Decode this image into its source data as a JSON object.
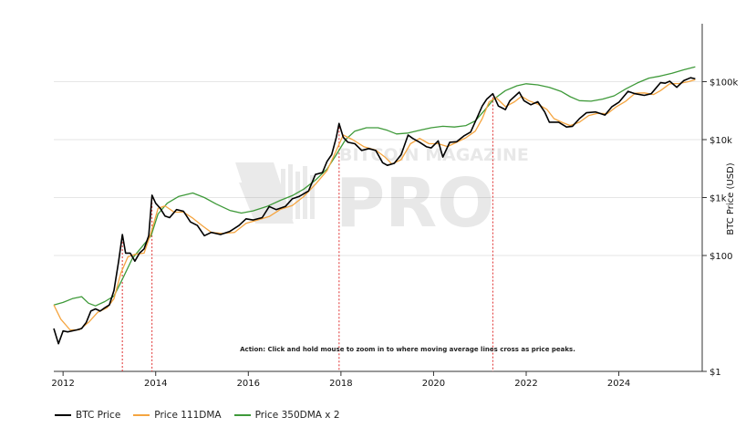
{
  "chart_data": {
    "type": "line",
    "title": "",
    "ylabel": "BTC Price (USD)",
    "xlabel": "",
    "yscale": "log",
    "ylim": [
      1,
      1000000
    ],
    "xlim": [
      2011.8,
      2025.8
    ],
    "x_ticks": [
      "2012",
      "2014",
      "2016",
      "2018",
      "2020",
      "2022",
      "2024"
    ],
    "y_ticks": [
      {
        "value": 1,
        "label": "$1"
      },
      {
        "value": 100,
        "label": "$100"
      },
      {
        "value": 1000,
        "label": "$1k"
      },
      {
        "value": 10000,
        "label": "$10k"
      },
      {
        "value": 100000,
        "label": "$100k"
      }
    ],
    "grid": "horizontal",
    "legend_position": "bottom-left",
    "annotation": "Action: Click and hold mouse to zoom in to where moving average lines cross as price peaks.",
    "watermark": "BITCOIN MAGAZINE PRO",
    "cross_dates": [
      2013.28,
      2013.92,
      2017.96,
      2021.28
    ],
    "series": [
      {
        "name": "BTC Price",
        "color": "#000000",
        "points": [
          [
            2011.8,
            5.5
          ],
          [
            2011.9,
            3.0
          ],
          [
            2012.0,
            5.0
          ],
          [
            2012.1,
            4.8
          ],
          [
            2012.2,
            5.0
          ],
          [
            2012.3,
            5.2
          ],
          [
            2012.4,
            5.5
          ],
          [
            2012.5,
            7.0
          ],
          [
            2012.6,
            11.0
          ],
          [
            2012.7,
            12.0
          ],
          [
            2012.8,
            11.0
          ],
          [
            2012.9,
            12.5
          ],
          [
            2013.0,
            14.0
          ],
          [
            2013.1,
            25.0
          ],
          [
            2013.2,
            80.0
          ],
          [
            2013.28,
            230.0
          ],
          [
            2013.35,
            110.0
          ],
          [
            2013.45,
            110.0
          ],
          [
            2013.55,
            80.0
          ],
          [
            2013.65,
            110.0
          ],
          [
            2013.75,
            130.0
          ],
          [
            2013.85,
            220.0
          ],
          [
            2013.92,
            1100.0
          ],
          [
            2014.0,
            800.0
          ],
          [
            2014.1,
            650.0
          ],
          [
            2014.2,
            480.0
          ],
          [
            2014.3,
            450.0
          ],
          [
            2014.45,
            620.0
          ],
          [
            2014.6,
            580.0
          ],
          [
            2014.75,
            380.0
          ],
          [
            2014.9,
            330.0
          ],
          [
            2015.05,
            220.0
          ],
          [
            2015.2,
            250.0
          ],
          [
            2015.4,
            230.0
          ],
          [
            2015.6,
            260.0
          ],
          [
            2015.8,
            330.0
          ],
          [
            2015.95,
            430.0
          ],
          [
            2016.1,
            410.0
          ],
          [
            2016.3,
            450.0
          ],
          [
            2016.45,
            700.0
          ],
          [
            2016.6,
            620.0
          ],
          [
            2016.8,
            700.0
          ],
          [
            2016.95,
            950.0
          ],
          [
            2017.1,
            1050.0
          ],
          [
            2017.3,
            1300.0
          ],
          [
            2017.45,
            2500.0
          ],
          [
            2017.6,
            2700.0
          ],
          [
            2017.7,
            4200.0
          ],
          [
            2017.8,
            5500.0
          ],
          [
            2017.9,
            11000.0
          ],
          [
            2017.96,
            19000.0
          ],
          [
            2018.05,
            11000.0
          ],
          [
            2018.15,
            9000.0
          ],
          [
            2018.3,
            8500.0
          ],
          [
            2018.45,
            6500.0
          ],
          [
            2018.6,
            7000.0
          ],
          [
            2018.75,
            6500.0
          ],
          [
            2018.9,
            4000.0
          ],
          [
            2019.0,
            3600.0
          ],
          [
            2019.15,
            3900.0
          ],
          [
            2019.3,
            5500.0
          ],
          [
            2019.45,
            12000.0
          ],
          [
            2019.55,
            10500.0
          ],
          [
            2019.7,
            9000.0
          ],
          [
            2019.85,
            7500.0
          ],
          [
            2019.95,
            7200.0
          ],
          [
            2020.1,
            9500.0
          ],
          [
            2020.2,
            5000.0
          ],
          [
            2020.35,
            9000.0
          ],
          [
            2020.5,
            9200.0
          ],
          [
            2020.65,
            11500.0
          ],
          [
            2020.8,
            13500.0
          ],
          [
            2020.95,
            25000.0
          ],
          [
            2021.05,
            38000.0
          ],
          [
            2021.15,
            50000.0
          ],
          [
            2021.28,
            62000.0
          ],
          [
            2021.4,
            38000.0
          ],
          [
            2021.55,
            33000.0
          ],
          [
            2021.65,
            47000.0
          ],
          [
            2021.85,
            66000.0
          ],
          [
            2021.95,
            47000.0
          ],
          [
            2022.1,
            40000.0
          ],
          [
            2022.25,
            45000.0
          ],
          [
            2022.4,
            30000.0
          ],
          [
            2022.5,
            20000.0
          ],
          [
            2022.7,
            20000.0
          ],
          [
            2022.87,
            16500.0
          ],
          [
            2023.0,
            17000.0
          ],
          [
            2023.15,
            23000.0
          ],
          [
            2023.3,
            29000.0
          ],
          [
            2023.5,
            30000.0
          ],
          [
            2023.7,
            26500.0
          ],
          [
            2023.85,
            37000.0
          ],
          [
            2024.0,
            44000.0
          ],
          [
            2024.2,
            68000.0
          ],
          [
            2024.35,
            62000.0
          ],
          [
            2024.55,
            58000.0
          ],
          [
            2024.7,
            62000.0
          ],
          [
            2024.9,
            96000.0
          ],
          [
            2025.0,
            94000.0
          ],
          [
            2025.1,
            102000.0
          ],
          [
            2025.25,
            80000.0
          ],
          [
            2025.4,
            104000.0
          ],
          [
            2025.55,
            117000.0
          ],
          [
            2025.65,
            112000.0
          ]
        ]
      },
      {
        "name": "Price 111DMA",
        "color": "#f5a540",
        "points": [
          [
            2011.8,
            14.0
          ],
          [
            2011.95,
            8.0
          ],
          [
            2012.15,
            5.2
          ],
          [
            2012.35,
            5.2
          ],
          [
            2012.55,
            7.0
          ],
          [
            2012.75,
            10.5
          ],
          [
            2012.95,
            12.5
          ],
          [
            2013.1,
            18.0
          ],
          [
            2013.25,
            50.0
          ],
          [
            2013.4,
            95.0
          ],
          [
            2013.55,
            105.0
          ],
          [
            2013.75,
            110.0
          ],
          [
            2013.9,
            250.0
          ],
          [
            2014.05,
            650.0
          ],
          [
            2014.2,
            720.0
          ],
          [
            2014.4,
            560.0
          ],
          [
            2014.6,
            560.0
          ],
          [
            2014.8,
            440.0
          ],
          [
            2015.0,
            330.0
          ],
          [
            2015.2,
            250.0
          ],
          [
            2015.45,
            240.0
          ],
          [
            2015.7,
            250.0
          ],
          [
            2015.95,
            360.0
          ],
          [
            2016.2,
            410.0
          ],
          [
            2016.45,
            470.0
          ],
          [
            2016.7,
            630.0
          ],
          [
            2016.95,
            730.0
          ],
          [
            2017.2,
            1050.0
          ],
          [
            2017.45,
            1700.0
          ],
          [
            2017.7,
            2900.0
          ],
          [
            2017.9,
            6500.0
          ],
          [
            2018.05,
            12000.0
          ],
          [
            2018.25,
            10000.0
          ],
          [
            2018.5,
            7500.0
          ],
          [
            2018.75,
            6600.0
          ],
          [
            2018.95,
            5000.0
          ],
          [
            2019.1,
            3800.0
          ],
          [
            2019.3,
            4500.0
          ],
          [
            2019.5,
            8500.0
          ],
          [
            2019.7,
            10500.0
          ],
          [
            2019.9,
            8500.0
          ],
          [
            2020.1,
            8500.0
          ],
          [
            2020.3,
            7600.0
          ],
          [
            2020.5,
            9000.0
          ],
          [
            2020.7,
            10800.0
          ],
          [
            2020.9,
            14000.0
          ],
          [
            2021.05,
            23000.0
          ],
          [
            2021.2,
            45000.0
          ],
          [
            2021.35,
            53000.0
          ],
          [
            2021.55,
            37000.0
          ],
          [
            2021.75,
            45000.0
          ],
          [
            2021.9,
            56000.0
          ],
          [
            2022.05,
            47000.0
          ],
          [
            2022.25,
            41000.0
          ],
          [
            2022.45,
            33000.0
          ],
          [
            2022.6,
            23000.0
          ],
          [
            2022.8,
            19500.0
          ],
          [
            2022.95,
            17500.0
          ],
          [
            2023.15,
            20000.0
          ],
          [
            2023.35,
            26000.0
          ],
          [
            2023.55,
            28500.0
          ],
          [
            2023.75,
            28000.0
          ],
          [
            2023.95,
            37000.0
          ],
          [
            2024.15,
            46000.0
          ],
          [
            2024.35,
            63000.0
          ],
          [
            2024.55,
            64000.0
          ],
          [
            2024.75,
            60000.0
          ],
          [
            2024.9,
            70000.0
          ],
          [
            2025.1,
            92000.0
          ],
          [
            2025.3,
            93000.0
          ],
          [
            2025.5,
            100000.0
          ],
          [
            2025.65,
            108000.0
          ]
        ]
      },
      {
        "name": "Price 350DMA x 2",
        "color": "#3f9a3a",
        "points": [
          [
            2011.8,
            14.0
          ],
          [
            2012.0,
            15.5
          ],
          [
            2012.2,
            18.0
          ],
          [
            2012.4,
            19.5
          ],
          [
            2012.55,
            15.0
          ],
          [
            2012.7,
            13.5
          ],
          [
            2012.9,
            16.0
          ],
          [
            2013.1,
            20.0
          ],
          [
            2013.3,
            42.0
          ],
          [
            2013.5,
            90.0
          ],
          [
            2013.7,
            140.0
          ],
          [
            2013.9,
            220.0
          ],
          [
            2014.05,
            520.0
          ],
          [
            2014.25,
            800.0
          ],
          [
            2014.5,
            1050.0
          ],
          [
            2014.8,
            1200.0
          ],
          [
            2015.05,
            1000.0
          ],
          [
            2015.3,
            780.0
          ],
          [
            2015.6,
            600.0
          ],
          [
            2015.85,
            540.0
          ],
          [
            2016.1,
            590.0
          ],
          [
            2016.4,
            700.0
          ],
          [
            2016.7,
            900.0
          ],
          [
            2016.95,
            1080.0
          ],
          [
            2017.2,
            1400.0
          ],
          [
            2017.45,
            2000.0
          ],
          [
            2017.7,
            3100.0
          ],
          [
            2017.9,
            5500.0
          ],
          [
            2018.1,
            10000.0
          ],
          [
            2018.3,
            14000.0
          ],
          [
            2018.55,
            16000.0
          ],
          [
            2018.8,
            16000.0
          ],
          [
            2019.0,
            14500.0
          ],
          [
            2019.2,
            12500.0
          ],
          [
            2019.45,
            13000.0
          ],
          [
            2019.7,
            14500.0
          ],
          [
            2019.95,
            16000.0
          ],
          [
            2020.2,
            17000.0
          ],
          [
            2020.45,
            16500.0
          ],
          [
            2020.7,
            17500.0
          ],
          [
            2020.9,
            21000.0
          ],
          [
            2021.1,
            32000.0
          ],
          [
            2021.3,
            50000.0
          ],
          [
            2021.55,
            70000.0
          ],
          [
            2021.8,
            85000.0
          ],
          [
            2022.0,
            92000.0
          ],
          [
            2022.25,
            88000.0
          ],
          [
            2022.5,
            80000.0
          ],
          [
            2022.75,
            68000.0
          ],
          [
            2022.95,
            55000.0
          ],
          [
            2023.15,
            47000.0
          ],
          [
            2023.4,
            46000.0
          ],
          [
            2023.65,
            50000.0
          ],
          [
            2023.9,
            57000.0
          ],
          [
            2024.15,
            75000.0
          ],
          [
            2024.4,
            95000.0
          ],
          [
            2024.65,
            115000.0
          ],
          [
            2024.9,
            125000.0
          ],
          [
            2025.15,
            140000.0
          ],
          [
            2025.4,
            160000.0
          ],
          [
            2025.65,
            180000.0
          ]
        ]
      }
    ]
  }
}
